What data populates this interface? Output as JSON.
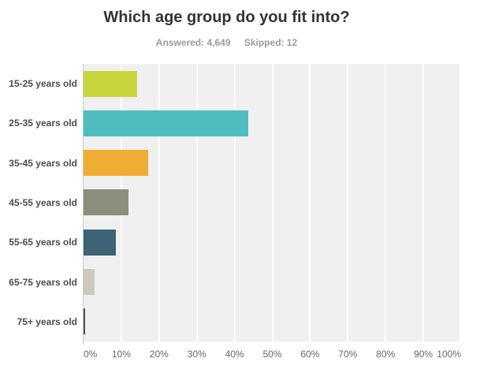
{
  "chart_data": {
    "type": "bar",
    "orientation": "horizontal",
    "title": "Which age group do you fit into?",
    "answered_label": "Answered: 4,649",
    "skipped_label": "Skipped: 12",
    "categories": [
      "15-25 years old",
      "25-35 years old",
      "35-45 years old",
      "45-55 years old",
      "55-65 years old",
      "65-75 years old",
      "75+ years old"
    ],
    "values": [
      14.2,
      43.6,
      17.1,
      11.9,
      8.6,
      2.9,
      0.4
    ],
    "unit": "%",
    "bar_colors": [
      "#c9d53d",
      "#4ebdbf",
      "#f0ad33",
      "#8a8f7c",
      "#3c6475",
      "#cdcaba",
      "#4f5345"
    ],
    "x_ticks": [
      "0%",
      "10%",
      "20%",
      "30%",
      "40%",
      "50%",
      "60%",
      "70%",
      "80%",
      "90%",
      "100%"
    ],
    "xlim": [
      0,
      100
    ],
    "grid": true,
    "legend": false,
    "plot_background": "#f0f0f0",
    "gridline_color": "#ffffff"
  }
}
